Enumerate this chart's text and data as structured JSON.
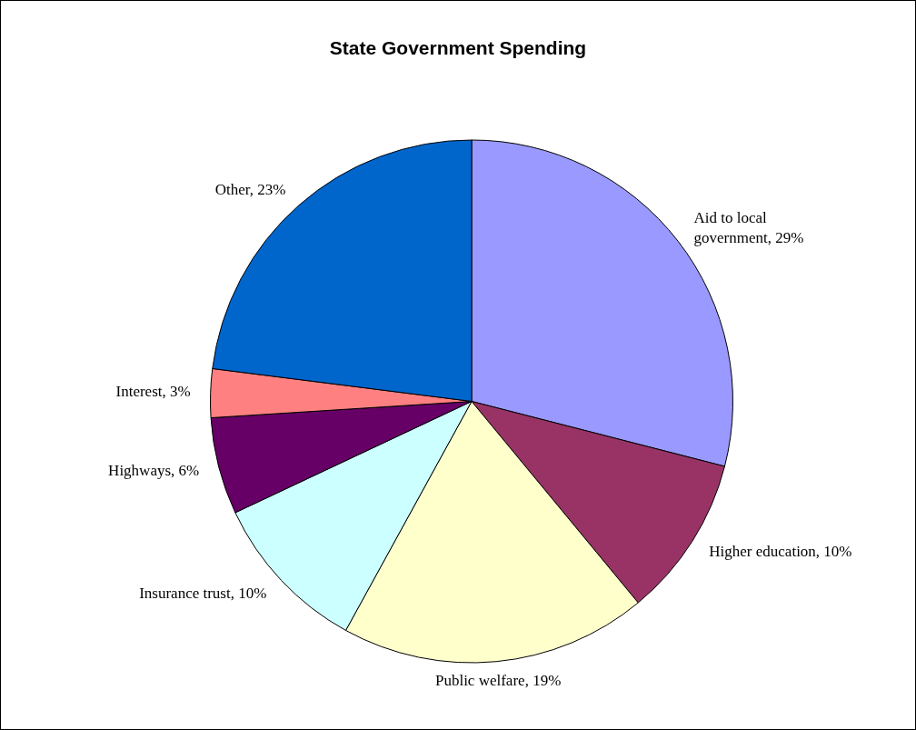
{
  "chart_data": {
    "type": "pie",
    "title": "State Government Spending",
    "categories": [
      "Aid to local government",
      "Higher education",
      "Public welfare",
      "Insurance trust",
      "Highways",
      "Interest",
      "Other"
    ],
    "values": [
      29,
      10,
      19,
      10,
      6,
      3,
      23
    ],
    "value_labels": [
      "29%",
      "10%",
      "19%",
      "10%",
      "6%",
      "3%",
      "23%"
    ],
    "colors": [
      "#9999ff",
      "#993366",
      "#ffffcc",
      "#ccffff",
      "#660066",
      "#ff8080",
      "#0066cc"
    ],
    "legend": false
  }
}
